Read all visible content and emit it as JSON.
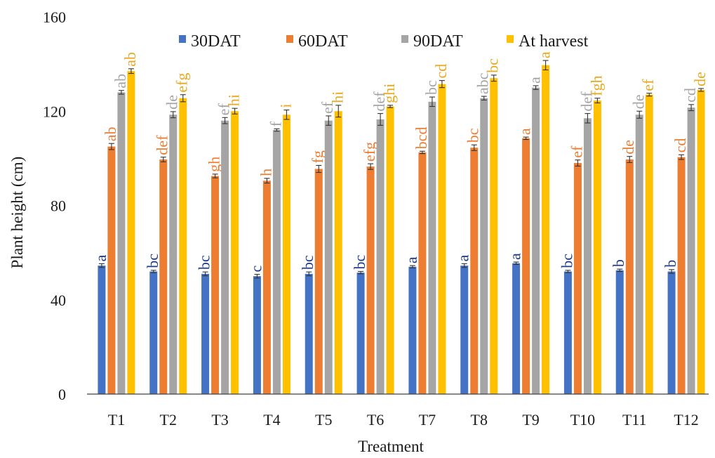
{
  "chart_data": {
    "type": "bar",
    "title": "",
    "xlabel": "Treatment",
    "ylabel": "Plant height (cm)",
    "ylim": [
      0,
      160
    ],
    "yticks": [
      0,
      40,
      80,
      120,
      160
    ],
    "grid": false,
    "legend_position": "top",
    "categories": [
      "T1",
      "T2",
      "T3",
      "T4",
      "T5",
      "T6",
      "T7",
      "T8",
      "T9",
      "T10",
      "T11",
      "T12"
    ],
    "series": [
      {
        "name": "30DAT",
        "color": "#4472C4",
        "label_color": "#1F3C88",
        "values": [
          54.5,
          52,
          51,
          50,
          51,
          51.5,
          54,
          54.5,
          55.5,
          52,
          52.5,
          52
        ],
        "errors": [
          0.8,
          0.5,
          0.8,
          0.8,
          0.8,
          0.5,
          0.5,
          0.8,
          0.5,
          0.5,
          0.5,
          0.8
        ],
        "letters": [
          "a",
          "bc",
          "bc",
          "c",
          "bc",
          "bc",
          "a",
          "a",
          "a",
          "bc",
          "b",
          "b"
        ]
      },
      {
        "name": "60DAT",
        "color": "#ED7D31",
        "label_color": "#ED7D31",
        "values": [
          105,
          99.5,
          92.5,
          90.5,
          95.5,
          96.5,
          102.5,
          104.5,
          108.5,
          98,
          99.5,
          100.5
        ],
        "errors": [
          1.3,
          1.0,
          0.8,
          1.0,
          1.5,
          1.2,
          0.5,
          1.2,
          0.5,
          1.3,
          1.3,
          1.0
        ],
        "letters": [
          "ab",
          "def",
          "gh",
          "h",
          "fg",
          "efg",
          "bcd",
          "bc",
          "a",
          "ef",
          "de",
          "cd"
        ]
      },
      {
        "name": "90DAT",
        "color": "#A5A5A5",
        "label_color": "#A5A5A5",
        "values": [
          128,
          118.5,
          116,
          112,
          116,
          116.5,
          124,
          125.5,
          130,
          117,
          118.5,
          121.5
        ],
        "errors": [
          0.8,
          1.3,
          1.3,
          0.5,
          2.0,
          2.5,
          2.0,
          0.8,
          0.8,
          2.0,
          1.5,
          1.3
        ],
        "letters": [
          "ab",
          "de",
          "ef",
          "f",
          "ef",
          "def",
          "bc",
          "abc",
          "a",
          "def",
          "de",
          "cd"
        ]
      },
      {
        "name": "At harvest",
        "color": "#FFC000",
        "label_color": "#E8A91E",
        "values": [
          137,
          125.5,
          120,
          118.5,
          120,
          122,
          131.5,
          134,
          139.5,
          124.5,
          127,
          129
        ],
        "errors": [
          1.0,
          1.5,
          1.2,
          2.0,
          2.5,
          0.5,
          1.5,
          1.3,
          2.0,
          1.0,
          0.6,
          0.6
        ],
        "letters": [
          "ab",
          "efg",
          "hi",
          "i",
          "hi",
          "ghi",
          "cd",
          "bc",
          "a",
          "fgh",
          "ef",
          "de"
        ]
      }
    ]
  }
}
